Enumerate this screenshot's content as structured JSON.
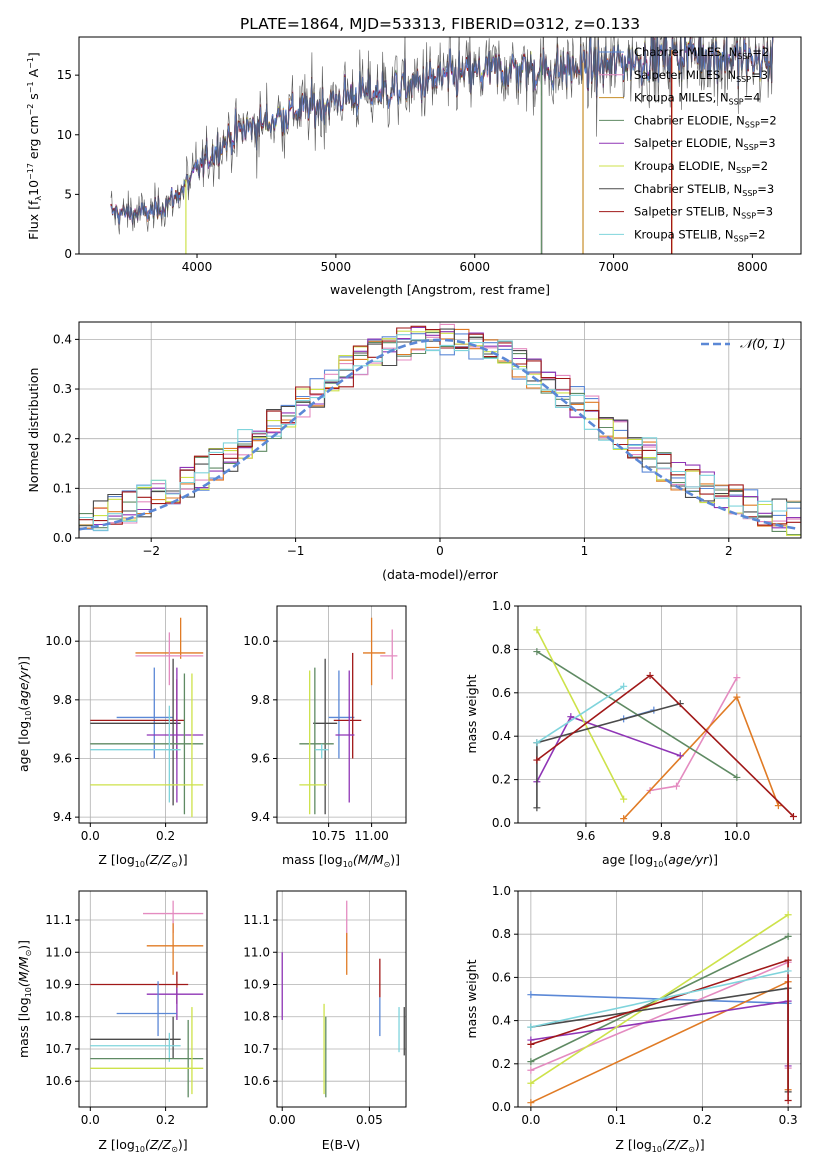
{
  "title": "PLATE=1864, MJD=53313, FIBERID=0312, z=0.133",
  "colors": {
    "cM": "#5b88d6",
    "sM": "#e48bc0",
    "kM": "#c78e2a",
    "cE": "#5f8a63",
    "sE": "#8f35b6",
    "kE": "#cde24a",
    "cS": "#4a4a4a",
    "sS": "#a01818",
    "kS": "#7fd4dc",
    "orange": "#e07b25",
    "grid": "#b0b0b0"
  },
  "spectrum": {
    "xlabel_main": "wavelength [Angstrom, rest frame]",
    "ylabel_parts": [
      "Flux [f",
      "λ",
      "10",
      "−17",
      " erg cm",
      "−2",
      " s",
      "−1",
      " A",
      "−1",
      "]"
    ],
    "xticks": [
      "4000",
      "5000",
      "6000",
      "7000",
      "8000"
    ],
    "yticks": [
      "0",
      "5",
      "10",
      "15"
    ],
    "legend": [
      {
        "label": "Chabrier MILES, N",
        "sub": "SSP",
        "n": "=2",
        "color": "cM"
      },
      {
        "label": "Salpeter MILES, N",
        "sub": "SSP",
        "n": "=3",
        "color": "sM"
      },
      {
        "label": "Kroupa MILES, N",
        "sub": "SSP",
        "n": "=4",
        "color": "kM"
      },
      {
        "label": "Chabrier ELODIE, N",
        "sub": "SSP",
        "n": "=2",
        "color": "cE"
      },
      {
        "label": "Salpeter ELODIE, N",
        "sub": "SSP",
        "n": "=3",
        "color": "sE"
      },
      {
        "label": "Kroupa ELODIE, N",
        "sub": "SSP",
        "n": "=2",
        "color": "kE"
      },
      {
        "label": "Chabrier STELIB, N",
        "sub": "SSP",
        "n": "=3",
        "color": "cS"
      },
      {
        "label": "Salpeter STELIB, N",
        "sub": "SSP",
        "n": "=3",
        "color": "sS"
      },
      {
        "label": "Kroupa STELIB, N",
        "sub": "SSP",
        "n": "=2",
        "color": "kS"
      }
    ]
  },
  "residuals": {
    "xlabel": "(data-model)/error",
    "ylabel": "Normed distribution",
    "xticks": [
      "−2",
      "−1",
      "0",
      "1",
      "2"
    ],
    "yticks": [
      "0.0",
      "0.1",
      "0.2",
      "0.3",
      "0.4"
    ],
    "legend_label": "𝒩(0, 1)"
  },
  "panels": {
    "p3": {
      "ylabel_parts": [
        "age  [log",
        "10",
        "(",
        "age/yr",
        ")]"
      ],
      "xlabel_parts": [
        "Z [log",
        "10",
        "(Z/Z",
        "⊙",
        ")]"
      ],
      "xticks": [
        "0.0",
        "0.2"
      ],
      "yticks": [
        "9.4",
        "9.6",
        "9.8",
        "10.0"
      ]
    },
    "p4": {
      "xlabel_parts": [
        "mass [log",
        "10",
        "(M/M",
        "⊙",
        ")]"
      ],
      "xticks": [
        "10.75",
        "11.00"
      ],
      "yticks": [
        "9.4",
        "9.6",
        "9.8",
        "10.0"
      ]
    },
    "p5": {
      "ylabel": "mass weight",
      "xlabel_parts": [
        "age  [log",
        "10",
        "(",
        "age/yr",
        ")]"
      ],
      "xticks": [
        "9.6",
        "9.8",
        "10.0"
      ],
      "yticks": [
        "0.0",
        "0.2",
        "0.4",
        "0.6",
        "0.8",
        "1.0"
      ]
    },
    "p6": {
      "ylabel_parts": [
        "mass [log",
        "10",
        "(M/M",
        "⊙",
        ")]"
      ],
      "xlabel_parts": [
        "Z [log",
        "10",
        "(Z/Z",
        "⊙",
        ")]"
      ],
      "xticks": [
        "0.0",
        "0.2"
      ],
      "yticks": [
        "10.6",
        "10.7",
        "10.8",
        "10.9",
        "11.0",
        "11.1"
      ]
    },
    "p7": {
      "xlabel": "E(B-V)",
      "xticks": [
        "0.00",
        "0.05"
      ],
      "yticks": [
        "10.6",
        "10.7",
        "10.8",
        "10.9",
        "11.0",
        "11.1"
      ]
    },
    "p8": {
      "ylabel": "mass weight",
      "xlabel_parts": [
        "Z [log",
        "10",
        "(Z/Z",
        "⊙",
        ")]"
      ],
      "xticks": [
        "0.0",
        "0.1",
        "0.2",
        "0.3"
      ],
      "yticks": [
        "0.0",
        "0.2",
        "0.4",
        "0.6",
        "0.8",
        "1.0"
      ]
    }
  },
  "chart_data": [
    {
      "type": "line",
      "title": "PLATE=1864, MJD=53313, FIBERID=0312, z=0.133",
      "xlabel": "wavelength [Angstrom, rest frame]",
      "ylabel": "Flux [fλ10^-17 erg cm^-2 s^-1 A^-1]",
      "xlim": [
        3150,
        8350
      ],
      "ylim": [
        0,
        18.2
      ],
      "continuum_x": [
        3400,
        3550,
        3700,
        3850,
        4000,
        4150,
        4300,
        4500,
        4700,
        4900,
        5100,
        5300,
        5500,
        5700,
        5900,
        6100,
        6300,
        6500,
        6700,
        6900,
        7100,
        7300,
        7500,
        7700,
        7900,
        8100
      ],
      "continuum_y": [
        3.5,
        3.4,
        3.6,
        4.8,
        7.0,
        9.0,
        10.3,
        11.0,
        12.0,
        12.5,
        13.3,
        13.6,
        14.0,
        14.6,
        15.0,
        15.3,
        15.5,
        15.4,
        15.6,
        15.7,
        16.2,
        16.5,
        16.9,
        16.7,
        16.4,
        16.2
      ],
      "drops_x": [
        3920,
        6480,
        6780,
        7420
      ]
    },
    {
      "type": "step",
      "xlabel": "(data-model)/error",
      "ylabel": "Normed distribution",
      "xlim": [
        -2.5,
        2.5
      ],
      "ylim": [
        0,
        0.435
      ],
      "bin_width": 0.1,
      "reference": "N(0,1)"
    },
    {
      "type": "errorbar",
      "xlabel": "Z [log10(Z/Zsun)]",
      "ylabel": "age [log10(age/yr)]",
      "xlim": [
        -0.03,
        0.31
      ],
      "ylim": [
        9.38,
        10.12
      ],
      "points": [
        {
          "c": "orange",
          "x": 0.24,
          "xe": [
            0.12,
            0.3
          ],
          "y": 9.96,
          "ye": [
            9.94,
            10.08
          ]
        },
        {
          "c": "sM",
          "x": 0.21,
          "xe": [
            0.12,
            0.3
          ],
          "y": 9.95,
          "ye": [
            9.85,
            10.03
          ]
        },
        {
          "c": "cM",
          "x": 0.17,
          "xe": [
            0.07,
            0.22
          ],
          "y": 9.74,
          "ye": [
            9.6,
            9.91
          ]
        },
        {
          "c": "sS",
          "x": 0.23,
          "xe": [
            0.0,
            0.25
          ],
          "y": 9.73,
          "ye": [
            9.6,
            9.87
          ]
        },
        {
          "c": "cS",
          "x": 0.22,
          "xe": [
            0.0,
            0.24
          ],
          "y": 9.72,
          "ye": [
            9.44,
            9.94
          ]
        },
        {
          "c": "sE",
          "x": 0.23,
          "xe": [
            0.15,
            0.3
          ],
          "y": 9.68,
          "ye": [
            9.45,
            9.91
          ]
        },
        {
          "c": "cE",
          "x": 0.25,
          "xe": [
            0.0,
            0.3
          ],
          "y": 9.65,
          "ye": [
            9.41,
            9.89
          ]
        },
        {
          "c": "kS",
          "x": 0.21,
          "xe": [
            0.0,
            0.24
          ],
          "y": 9.63,
          "ye": [
            9.45,
            9.78
          ]
        },
        {
          "c": "kE",
          "x": 0.27,
          "xe": [
            0.0,
            0.3
          ],
          "y": 9.51,
          "ye": [
            9.4,
            9.89
          ]
        }
      ]
    },
    {
      "type": "errorbar",
      "xlabel": "mass [log10(M/Msun)]",
      "ylabel": "age [log10(age/yr)]",
      "xlim": [
        10.45,
        11.2
      ],
      "ylim": [
        9.38,
        10.12
      ],
      "points": [
        {
          "c": "orange",
          "x": 11.0,
          "xe": [
            10.95,
            11.08
          ],
          "y": 9.96,
          "ye": [
            9.85,
            10.08
          ]
        },
        {
          "c": "sM",
          "x": 11.12,
          "xe": [
            11.05,
            11.15
          ],
          "y": 9.95,
          "ye": [
            9.87,
            10.04
          ]
        },
        {
          "c": "cM",
          "x": 10.81,
          "xe": [
            10.75,
            10.9
          ],
          "y": 9.74,
          "ye": [
            9.6,
            9.9
          ]
        },
        {
          "c": "sS",
          "x": 10.89,
          "xe": [
            10.78,
            10.94
          ],
          "y": 9.73,
          "ye": [
            9.6,
            9.96
          ]
        },
        {
          "c": "cS",
          "x": 10.73,
          "xe": [
            10.66,
            10.8
          ],
          "y": 9.72,
          "ye": [
            9.41,
            9.94
          ]
        },
        {
          "c": "sE",
          "x": 10.87,
          "xe": [
            10.79,
            10.9
          ],
          "y": 9.68,
          "ye": [
            9.45,
            9.9
          ]
        },
        {
          "c": "cE",
          "x": 10.67,
          "xe": [
            10.58,
            10.78
          ],
          "y": 9.65,
          "ye": [
            9.41,
            9.91
          ]
        },
        {
          "c": "kS",
          "x": 10.71,
          "xe": [
            10.67,
            10.75
          ],
          "y": 9.63,
          "ye": [
            9.6,
            9.65
          ]
        },
        {
          "c": "kE",
          "x": 10.64,
          "xe": [
            10.58,
            10.74
          ],
          "y": 9.51,
          "ye": [
            9.41,
            9.9
          ]
        }
      ]
    },
    {
      "type": "line",
      "xlabel": "age [log10(age/yr)]",
      "ylabel": "mass weight",
      "xlim": [
        9.42,
        10.17
      ],
      "ylim": [
        0,
        1
      ],
      "series": [
        {
          "c": "cM",
          "x": [
            9.7,
            9.78
          ],
          "y": [
            0.48,
            0.52
          ]
        },
        {
          "c": "sM",
          "x": [
            9.77,
            9.84,
            10.0
          ],
          "y": [
            0.15,
            0.17,
            0.67
          ]
        },
        {
          "c": "orange",
          "x": [
            9.7,
            10.0,
            10.11
          ],
          "y": [
            0.02,
            0.58,
            0.08
          ]
        },
        {
          "c": "cE",
          "x": [
            9.47,
            10.0
          ],
          "y": [
            0.79,
            0.21
          ]
        },
        {
          "c": "sE",
          "x": [
            9.47,
            9.56,
            9.85
          ],
          "y": [
            0.19,
            0.49,
            0.31
          ]
        },
        {
          "c": "kE",
          "x": [
            9.47,
            9.7
          ],
          "y": [
            0.89,
            0.11
          ]
        },
        {
          "c": "cS",
          "x": [
            9.47,
            9.47,
            9.85
          ],
          "y": [
            0.07,
            0.37,
            0.55
          ]
        },
        {
          "c": "sS",
          "x": [
            9.47,
            9.77,
            10.15
          ],
          "y": [
            0.29,
            0.68,
            0.03
          ]
        },
        {
          "c": "kS",
          "x": [
            9.47,
            9.7
          ],
          "y": [
            0.37,
            0.63
          ]
        }
      ]
    },
    {
      "type": "errorbar",
      "xlabel": "Z [log10(Z/Zsun)]",
      "ylabel": "mass [log10(M/Msun)]",
      "xlim": [
        -0.03,
        0.31
      ],
      "ylim": [
        10.52,
        11.19
      ],
      "points": [
        {
          "c": "sM",
          "x": 0.22,
          "xe": [
            0.14,
            0.3
          ],
          "y": 11.12,
          "ye": [
            11.06,
            11.16
          ]
        },
        {
          "c": "orange",
          "x": 0.22,
          "xe": [
            0.15,
            0.3
          ],
          "y": 11.02,
          "ye": [
            10.93,
            11.09
          ]
        },
        {
          "c": "sS",
          "x": 0.23,
          "xe": [
            0.0,
            0.26
          ],
          "y": 10.9,
          "ye": [
            10.84,
            10.94
          ]
        },
        {
          "c": "sE",
          "x": 0.23,
          "xe": [
            0.15,
            0.3
          ],
          "y": 10.87,
          "ye": [
            10.79,
            10.89
          ]
        },
        {
          "c": "cM",
          "x": 0.18,
          "xe": [
            0.07,
            0.23
          ],
          "y": 10.81,
          "ye": [
            10.74,
            10.91
          ]
        },
        {
          "c": "cS",
          "x": 0.22,
          "xe": [
            0.0,
            0.24
          ],
          "y": 10.73,
          "ye": [
            10.67,
            10.8
          ]
        },
        {
          "c": "kS",
          "x": 0.21,
          "xe": [
            0.0,
            0.24
          ],
          "y": 10.71,
          "ye": [
            10.66,
            10.75
          ]
        },
        {
          "c": "cE",
          "x": 0.26,
          "xe": [
            0.0,
            0.3
          ],
          "y": 10.67,
          "ye": [
            10.55,
            10.79
          ]
        },
        {
          "c": "kE",
          "x": 0.27,
          "xe": [
            0.0,
            0.3
          ],
          "y": 10.64,
          "ye": [
            10.56,
            10.83
          ]
        }
      ]
    },
    {
      "type": "errorbar",
      "xlabel": "E(B-V)",
      "ylabel": "mass [log10(M/Msun)]",
      "xlim": [
        -0.003,
        0.071
      ],
      "ylim": [
        10.52,
        11.19
      ],
      "points": [
        {
          "c": "sE",
          "x": 0.0,
          "ye": [
            10.79,
            11.0
          ]
        },
        {
          "c": "kE",
          "x": 0.024,
          "ye": [
            10.56,
            10.84
          ]
        },
        {
          "c": "cE",
          "x": 0.025,
          "ye": [
            10.55,
            10.8
          ]
        },
        {
          "c": "sM",
          "x": 0.037,
          "ye": [
            11.0,
            11.16
          ]
        },
        {
          "c": "orange",
          "x": 0.037,
          "ye": [
            10.93,
            11.06
          ]
        },
        {
          "c": "sS",
          "x": 0.056,
          "ye": [
            10.86,
            10.98
          ]
        },
        {
          "c": "cM",
          "x": 0.056,
          "ye": [
            10.74,
            10.86
          ]
        },
        {
          "c": "kS",
          "x": 0.067,
          "ye": [
            10.69,
            10.83
          ]
        },
        {
          "c": "cS",
          "x": 0.07,
          "ye": [
            10.68,
            10.83
          ]
        }
      ]
    },
    {
      "type": "line",
      "xlabel": "Z [log10(Z/Zsun)]",
      "ylabel": "mass weight",
      "xlim": [
        -0.015,
        0.315
      ],
      "ylim": [
        0,
        1
      ],
      "series": [
        {
          "c": "cM",
          "x": [
            0.0,
            0.3
          ],
          "y": [
            0.52,
            0.48
          ]
        },
        {
          "c": "sM",
          "x": [
            0.0,
            0.3,
            0.3
          ],
          "y": [
            0.17,
            0.67,
            0.18
          ]
        },
        {
          "c": "orange",
          "x": [
            0.0,
            0.3,
            0.3
          ],
          "y": [
            0.02,
            0.58,
            0.08
          ]
        },
        {
          "c": "cE",
          "x": [
            0.0,
            0.3
          ],
          "y": [
            0.21,
            0.79
          ]
        },
        {
          "c": "sE",
          "x": [
            0.0,
            0.3,
            0.3
          ],
          "y": [
            0.31,
            0.49,
            0.19
          ]
        },
        {
          "c": "kE",
          "x": [
            0.0,
            0.3
          ],
          "y": [
            0.11,
            0.89
          ]
        },
        {
          "c": "cS",
          "x": [
            0.0,
            0.3,
            0.3
          ],
          "y": [
            0.37,
            0.55,
            0.07
          ]
        },
        {
          "c": "sS",
          "x": [
            0.0,
            0.3,
            0.3
          ],
          "y": [
            0.29,
            0.68,
            0.03
          ]
        },
        {
          "c": "kS",
          "x": [
            0.0,
            0.3
          ],
          "y": [
            0.37,
            0.63
          ]
        }
      ]
    }
  ]
}
